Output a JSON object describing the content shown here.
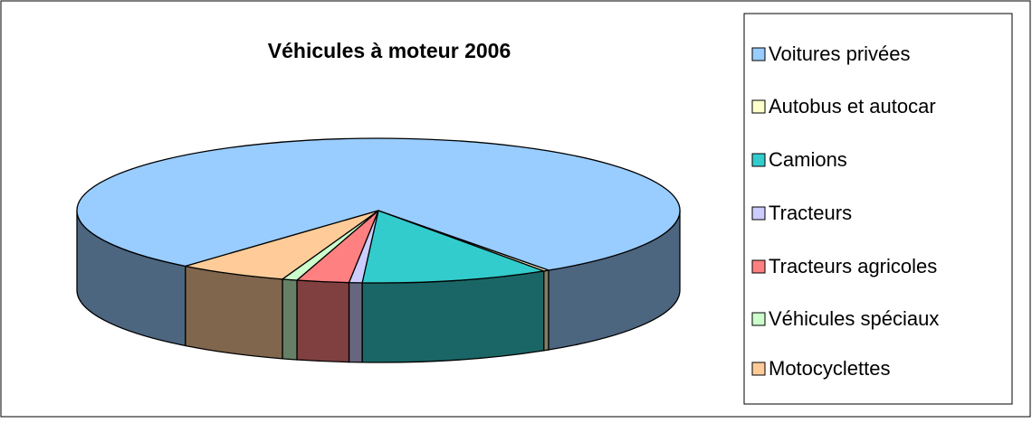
{
  "chart_data": {
    "type": "pie3d",
    "title": "Véhicules à moteur 2006",
    "categories": [
      "Voitures privées",
      "Autobus et autocar",
      "Camions",
      "Tracteurs",
      "Tracteurs agricoles",
      "Véhicules spéciaux",
      "Motocyclettes"
    ],
    "values": [
      79.4,
      0.3,
      10.1,
      0.7,
      2.8,
      0.8,
      5.9
    ],
    "colors": [
      "#99ccff",
      "#ffffcc",
      "#33cccc",
      "#ccccff",
      "#ff8080",
      "#ccffcc",
      "#ffcc99"
    ],
    "legend": "right"
  }
}
